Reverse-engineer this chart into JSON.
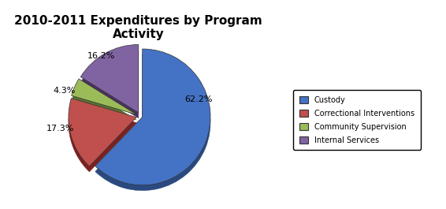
{
  "title": "2010-2011 Expenditures by Program\nActivity",
  "slices": [
    62.2,
    17.3,
    4.3,
    16.2
  ],
  "colors": [
    "#4472C4",
    "#C0504D",
    "#9BBB59",
    "#8064A2"
  ],
  "edge_colors": [
    "#2E4D7B",
    "#7B2020",
    "#4E6118",
    "#4B3669"
  ],
  "legend_labels": [
    "Custody",
    "Correctional Interventions",
    "Community Supervision",
    "Internal Services"
  ],
  "pct_labels": [
    "62.2%",
    "17.3%",
    "4.3%",
    "16.2%"
  ],
  "explode": [
    0.03,
    0.06,
    0.06,
    0.06
  ],
  "startangle": 90,
  "background_color": "#ffffff",
  "title_fontsize": 11,
  "shadow_depth": 0.08
}
